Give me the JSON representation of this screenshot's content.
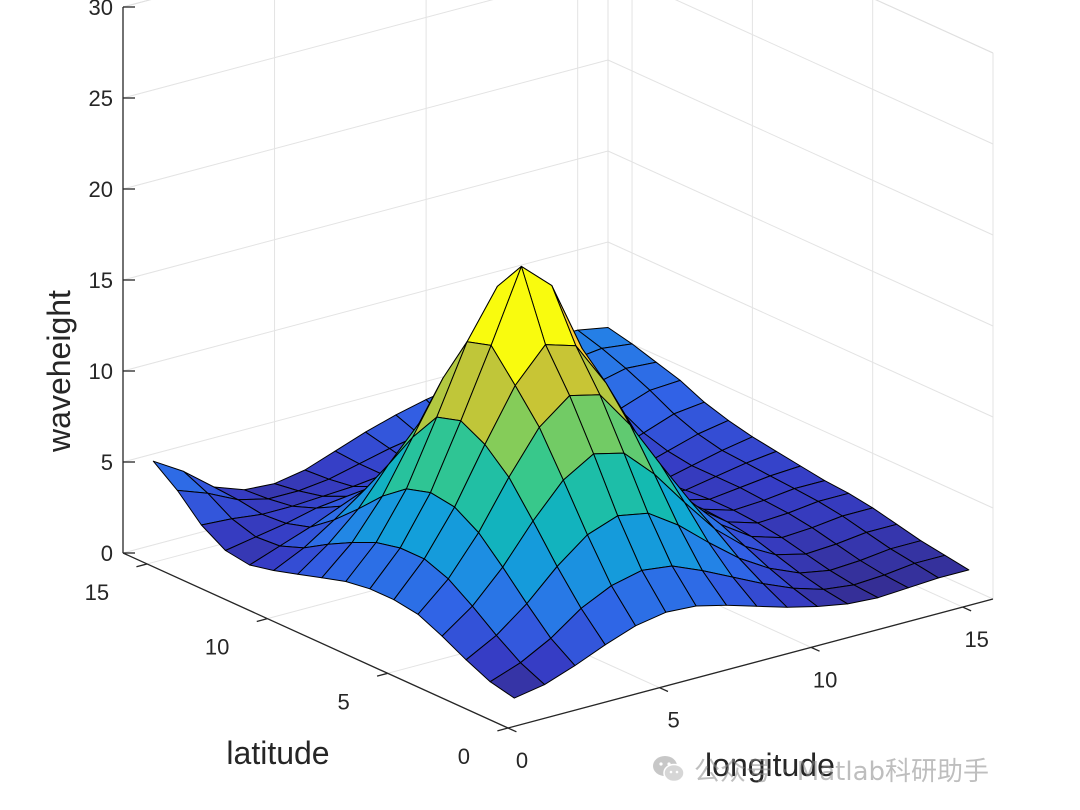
{
  "chart_data": {
    "type": "surface",
    "xlabel": "longitude",
    "ylabel": "latitude",
    "zlabel": "waveheight",
    "xlim": [
      0,
      16
    ],
    "ylim": [
      0,
      16
    ],
    "zlim": [
      0,
      30
    ],
    "xticks": [
      0,
      5,
      10,
      15
    ],
    "yticks": [
      0,
      5,
      10,
      15
    ],
    "zticks": [
      0,
      5,
      10,
      15,
      20,
      25,
      30
    ],
    "grid": true,
    "colormap": "parula",
    "colors": {
      "edge": "#000000",
      "box": "#262626",
      "grid": "#e3e3e3",
      "tick": "#262626"
    },
    "x": [
      1,
      2,
      3,
      4,
      5,
      6,
      7,
      8,
      9,
      10,
      11,
      12,
      13,
      14,
      15,
      16
    ],
    "y": [
      1,
      2,
      3,
      4,
      5,
      6,
      7,
      8,
      9,
      10,
      11,
      12,
      13,
      14,
      15,
      16
    ],
    "z": [
      [
        0.6,
        0.9,
        1.5,
        2.2,
        2.8,
        3.1,
        3.0,
        2.6,
        2.1,
        1.6,
        1.2,
        0.9,
        0.8,
        0.9,
        1.0,
        1.0
      ],
      [
        0.9,
        1.5,
        2.4,
        3.6,
        4.4,
        4.8,
        4.6,
        3.9,
        3.1,
        2.3,
        1.6,
        1.1,
        0.9,
        1.0,
        1.2,
        1.2
      ],
      [
        1.5,
        2.4,
        3.7,
        5.3,
        6.6,
        7.2,
        6.9,
        5.8,
        4.4,
        3.1,
        2.1,
        1.4,
        1.1,
        1.2,
        1.4,
        1.4
      ],
      [
        2.2,
        3.4,
        5.1,
        7.2,
        9.0,
        10.0,
        9.6,
        8.0,
        6.0,
        4.1,
        2.7,
        1.8,
        1.4,
        1.5,
        1.7,
        1.7
      ],
      [
        2.8,
        4.3,
        6.4,
        9.0,
        11.3,
        12.6,
        12.2,
        10.1,
        7.5,
        5.0,
        3.3,
        2.2,
        1.7,
        1.8,
        2.0,
        2.0
      ],
      [
        3.0,
        4.8,
        7.2,
        10.2,
        13.0,
        14.8,
        14.3,
        11.8,
        8.6,
        5.6,
        3.6,
        2.4,
        1.9,
        2.0,
        2.2,
        2.2
      ],
      [
        3.0,
        4.8,
        7.4,
        10.9,
        14.6,
        18.5,
        17.0,
        13.1,
        9.2,
        5.8,
        3.7,
        2.5,
        2.0,
        2.1,
        2.3,
        2.3
      ],
      [
        2.8,
        4.5,
        7.0,
        10.5,
        14.2,
        16.8,
        15.6,
        12.3,
        8.7,
        5.5,
        3.5,
        2.4,
        2.0,
        2.2,
        2.4,
        2.5
      ],
      [
        2.4,
        3.9,
        6.0,
        8.8,
        11.6,
        13.2,
        12.4,
        10.0,
        7.3,
        4.8,
        3.1,
        2.2,
        1.9,
        2.2,
        2.5,
        2.7
      ],
      [
        2.0,
        3.2,
        4.7,
        6.7,
        8.5,
        9.4,
        8.9,
        7.4,
        5.6,
        3.9,
        2.6,
        1.9,
        1.8,
        2.2,
        2.6,
        2.9
      ],
      [
        1.6,
        2.4,
        3.5,
        4.7,
        5.8,
        6.2,
        5.9,
        5.1,
        4.0,
        3.0,
        2.2,
        1.8,
        1.9,
        2.4,
        2.9,
        3.2
      ],
      [
        1.3,
        1.9,
        2.5,
        3.2,
        3.8,
        4.0,
        3.8,
        3.4,
        2.9,
        2.4,
        2.0,
        1.9,
        2.2,
        2.8,
        3.4,
        3.6
      ],
      [
        1.5,
        1.8,
        2.1,
        2.5,
        2.7,
        2.8,
        2.8,
        2.7,
        2.5,
        2.3,
        2.2,
        2.3,
        2.8,
        3.5,
        4.1,
        4.2
      ],
      [
        2.3,
        2.2,
        2.0,
        2.0,
        2.1,
        2.2,
        2.4,
        2.5,
        2.6,
        2.6,
        2.7,
        3.0,
        3.6,
        4.3,
        4.7,
        4.6
      ],
      [
        3.6,
        3.0,
        2.2,
        1.8,
        1.8,
        2.0,
        2.4,
        2.8,
        3.1,
        3.3,
        3.5,
        3.9,
        4.5,
        5.0,
        5.2,
        5.0
      ],
      [
        4.6,
        3.6,
        2.3,
        1.7,
        1.6,
        1.9,
        2.5,
        3.1,
        3.6,
        4.0,
        4.3,
        4.7,
        5.2,
        5.6,
        5.6,
        5.3
      ]
    ]
  },
  "watermark": {
    "text": "公众号 · Matlab科研助手"
  }
}
